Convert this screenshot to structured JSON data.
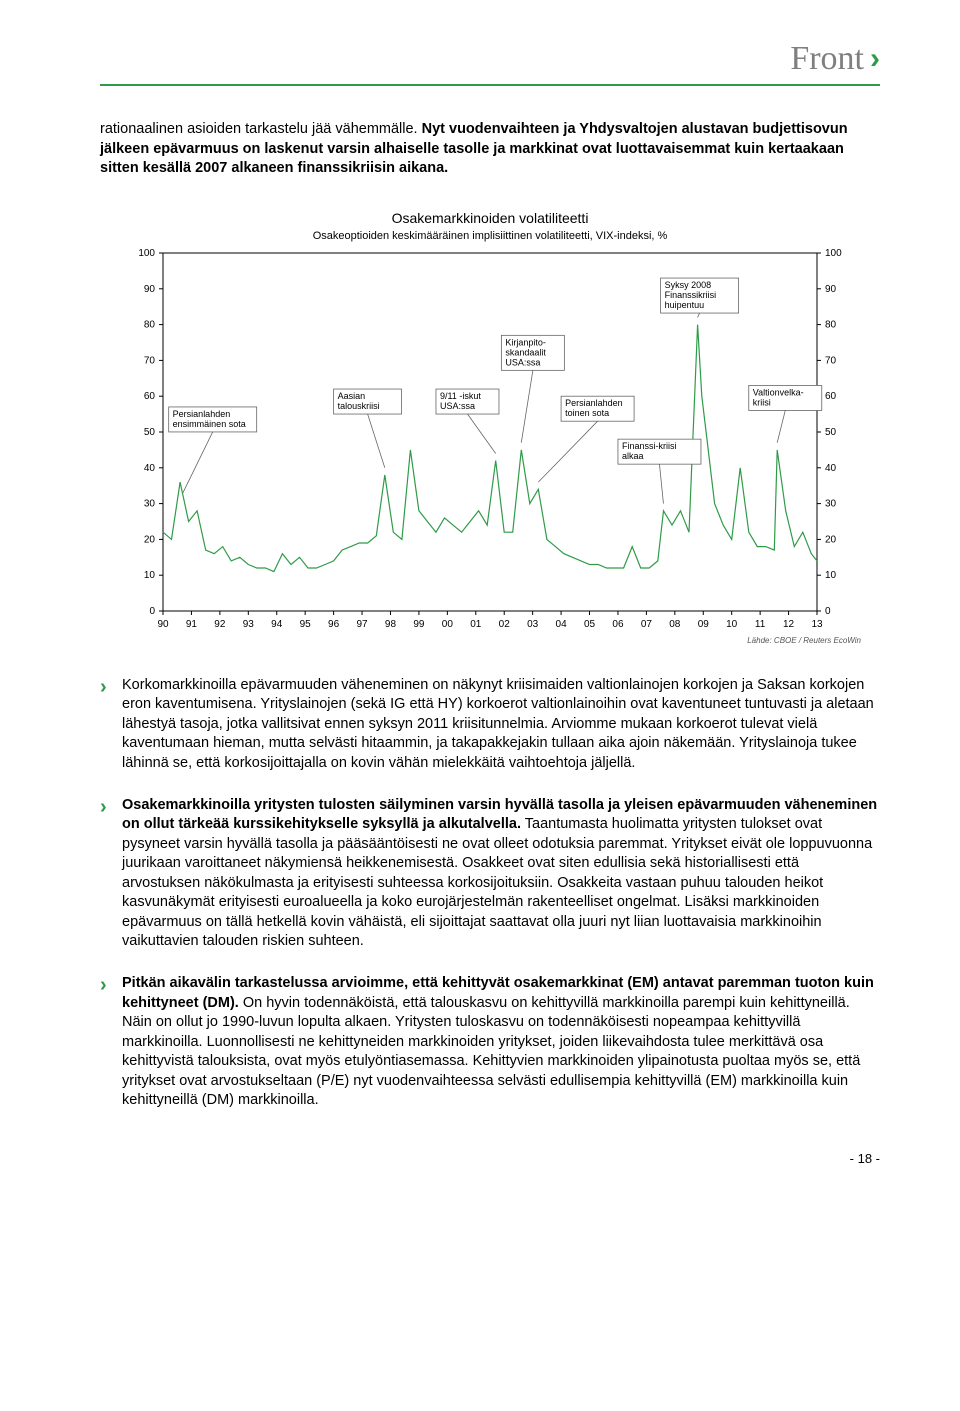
{
  "logo_text": "Front",
  "intro": {
    "lead": "rationaalinen asioiden tarkastelu jää vähemmälle. ",
    "bold": "Nyt vuodenvaihteen ja Yhdysvaltojen alustavan budjettisovun jälkeen epävarmuus on laskenut varsin alhaiselle tasolle ja markkinat ovat luottavaisemmat kuin kertaakaan sitten kesällä 2007 alkaneen finanssikriisin aikana."
  },
  "chart": {
    "type": "line",
    "title": "Osakemarkkinoiden volatiliteetti",
    "subtitle": "Osakeoptioiden keskimääräinen implisiittinen volatiliteetti, VIX-indeksi, %",
    "source": "Lähde: CBOE / Reuters EcoWin",
    "background_color": "#ffffff",
    "grid_color": "#b8b8b8",
    "line_color": "#2e9b47",
    "label_border_color": "#666666",
    "line_width": 1.2,
    "title_fontsize": 14,
    "subtitle_fontsize": 11,
    "tick_fontsize": 10,
    "label_fontsize": 9,
    "source_fontsize": 8,
    "ylim": [
      0,
      100
    ],
    "ytick_step": 10,
    "yticks": [
      0,
      10,
      20,
      30,
      40,
      50,
      60,
      70,
      80,
      90,
      100
    ],
    "xlim": [
      1990,
      2013
    ],
    "xticks": [
      "90",
      "91",
      "92",
      "93",
      "94",
      "95",
      "96",
      "97",
      "98",
      "99",
      "00",
      "01",
      "02",
      "03",
      "04",
      "05",
      "06",
      "07",
      "08",
      "09",
      "10",
      "11",
      "12",
      "13"
    ],
    "annotations": [
      {
        "text": "Persianlahden\nensimmäinen sota",
        "x": 1990.6
      },
      {
        "text": "Aasian\ntalouskriisi",
        "x": 1997.8
      },
      {
        "text": "9/11 -iskut\nUSA:ssa",
        "x": 2001.7
      },
      {
        "text": "Kirjanpito-\nskandaalit\nUSA:ssa",
        "x": 2002.6
      },
      {
        "text": "Persianlahden\ntoinen sota",
        "x": 2003.2
      },
      {
        "text": "Finanssi-kriisi\nalkaa",
        "x": 2007.6
      },
      {
        "text": "Syksy 2008\nFinanssikriisi\nhuipentuu",
        "x": 2008.8
      },
      {
        "text": "Valtionvelka-\nkriisi",
        "x": 2011.6
      }
    ],
    "series": [
      {
        "x": 1990.0,
        "y": 22
      },
      {
        "x": 1990.3,
        "y": 20
      },
      {
        "x": 1990.6,
        "y": 36
      },
      {
        "x": 1990.9,
        "y": 25
      },
      {
        "x": 1991.2,
        "y": 28
      },
      {
        "x": 1991.5,
        "y": 17
      },
      {
        "x": 1991.8,
        "y": 16
      },
      {
        "x": 1992.1,
        "y": 18
      },
      {
        "x": 1992.4,
        "y": 14
      },
      {
        "x": 1992.7,
        "y": 15
      },
      {
        "x": 1993.0,
        "y": 13
      },
      {
        "x": 1993.3,
        "y": 12
      },
      {
        "x": 1993.6,
        "y": 12
      },
      {
        "x": 1993.9,
        "y": 11
      },
      {
        "x": 1994.2,
        "y": 16
      },
      {
        "x": 1994.5,
        "y": 13
      },
      {
        "x": 1994.8,
        "y": 15
      },
      {
        "x": 1995.1,
        "y": 12
      },
      {
        "x": 1995.4,
        "y": 12
      },
      {
        "x": 1995.7,
        "y": 13
      },
      {
        "x": 1996.0,
        "y": 14
      },
      {
        "x": 1996.3,
        "y": 17
      },
      {
        "x": 1996.6,
        "y": 18
      },
      {
        "x": 1996.9,
        "y": 19
      },
      {
        "x": 1997.2,
        "y": 19
      },
      {
        "x": 1997.5,
        "y": 21
      },
      {
        "x": 1997.8,
        "y": 38
      },
      {
        "x": 1998.1,
        "y": 22
      },
      {
        "x": 1998.4,
        "y": 20
      },
      {
        "x": 1998.7,
        "y": 45
      },
      {
        "x": 1999.0,
        "y": 28
      },
      {
        "x": 1999.3,
        "y": 25
      },
      {
        "x": 1999.6,
        "y": 22
      },
      {
        "x": 1999.9,
        "y": 26
      },
      {
        "x": 2000.2,
        "y": 24
      },
      {
        "x": 2000.5,
        "y": 22
      },
      {
        "x": 2000.8,
        "y": 25
      },
      {
        "x": 2001.1,
        "y": 28
      },
      {
        "x": 2001.4,
        "y": 24
      },
      {
        "x": 2001.7,
        "y": 42
      },
      {
        "x": 2002.0,
        "y": 22
      },
      {
        "x": 2002.3,
        "y": 22
      },
      {
        "x": 2002.6,
        "y": 45
      },
      {
        "x": 2002.9,
        "y": 30
      },
      {
        "x": 2003.2,
        "y": 34
      },
      {
        "x": 2003.5,
        "y": 20
      },
      {
        "x": 2003.8,
        "y": 18
      },
      {
        "x": 2004.1,
        "y": 16
      },
      {
        "x": 2004.4,
        "y": 15
      },
      {
        "x": 2004.7,
        "y": 14
      },
      {
        "x": 2005.0,
        "y": 13
      },
      {
        "x": 2005.3,
        "y": 13
      },
      {
        "x": 2005.6,
        "y": 12
      },
      {
        "x": 2005.9,
        "y": 12
      },
      {
        "x": 2006.2,
        "y": 12
      },
      {
        "x": 2006.5,
        "y": 18
      },
      {
        "x": 2006.8,
        "y": 12
      },
      {
        "x": 2007.1,
        "y": 12
      },
      {
        "x": 2007.4,
        "y": 14
      },
      {
        "x": 2007.6,
        "y": 28
      },
      {
        "x": 2007.9,
        "y": 24
      },
      {
        "x": 2008.2,
        "y": 28
      },
      {
        "x": 2008.5,
        "y": 22
      },
      {
        "x": 2008.8,
        "y": 80
      },
      {
        "x": 2008.95,
        "y": 60
      },
      {
        "x": 2009.1,
        "y": 50
      },
      {
        "x": 2009.4,
        "y": 30
      },
      {
        "x": 2009.7,
        "y": 24
      },
      {
        "x": 2010.0,
        "y": 20
      },
      {
        "x": 2010.3,
        "y": 40
      },
      {
        "x": 2010.6,
        "y": 22
      },
      {
        "x": 2010.9,
        "y": 18
      },
      {
        "x": 2011.2,
        "y": 18
      },
      {
        "x": 2011.5,
        "y": 17
      },
      {
        "x": 2011.6,
        "y": 45
      },
      {
        "x": 2011.9,
        "y": 28
      },
      {
        "x": 2012.2,
        "y": 18
      },
      {
        "x": 2012.5,
        "y": 22
      },
      {
        "x": 2012.8,
        "y": 16
      },
      {
        "x": 2013.0,
        "y": 14
      }
    ]
  },
  "bullets": [
    {
      "runs": [
        {
          "b": false,
          "t": "Korkomarkkinoilla epävarmuuden väheneminen on näkynyt kriisimaiden valtionlainojen korkojen ja Saksan korkojen eron kaventumisena. Yrityslainojen (sekä IG että HY) korkoerot valtionlainoihin ovat kaventuneet tuntuvasti ja aletaan lähestyä tasoja, jotka vallitsivat ennen syksyn 2011 kriisitunnelmia. Arviomme mukaan korkoerot tulevat vielä kaventumaan hieman, mutta selvästi hitaammin, ja takapakkejakin tullaan aika ajoin näkemään. Yrityslainoja tukee lähinnä se, että korkosijoittajalla on kovin vähän mielekkäitä vaihtoehtoja jäljellä."
        }
      ]
    },
    {
      "runs": [
        {
          "b": true,
          "t": "Osakemarkkinoilla yritysten tulosten säilyminen varsin hyvällä tasolla ja yleisen epävarmuuden väheneminen on ollut tärkeää kurssikehitykselle syksyllä ja alkutalvella."
        },
        {
          "b": false,
          "t": " Taantumasta huolimatta yritysten tulokset ovat pysyneet varsin hyvällä tasolla ja pääsääntöisesti ne ovat olleet odotuksia paremmat. Yritykset eivät ole loppuvuonna juurikaan varoittaneet näkymiensä heikkenemisestä. Osakkeet ovat siten edullisia sekä historiallisesti että arvostuksen näkökulmasta ja erityisesti suhteessa korkosijoituksiin. Osakkeita vastaan puhuu talouden heikot kasvunäkymät erityisesti euroalueella ja koko eurojärjestelmän rakenteelliset ongelmat. Lisäksi markkinoiden epävarmuus on tällä hetkellä kovin vähäistä, eli sijoittajat saattavat olla juuri nyt liian luottavaisia markkinoihin vaikuttavien talouden riskien suhteen."
        }
      ]
    },
    {
      "runs": [
        {
          "b": true,
          "t": "Pitkän aikavälin tarkastelussa arvioimme, että kehittyvät osakemarkkinat (EM) antavat paremman tuoton kuin kehittyneet (DM)."
        },
        {
          "b": false,
          "t": " On hyvin todennäköistä, että talouskasvu on kehittyvillä markkinoilla parempi kuin kehittyneillä. Näin on ollut jo 1990-luvun lopulta alkaen. Yritysten tuloskasvu on todennäköisesti nopeampaa kehittyvillä markkinoilla. Luonnollisesti ne kehittyneiden markkinoiden yritykset, joiden liikevaihdosta tulee merkittävä osa kehittyvistä talouksista, ovat myös etulyöntiasemassa. Kehittyvien markkinoiden ylipainotusta puoltaa myös se, että yritykset ovat arvostukseltaan (P/E) nyt vuodenvaihteessa selvästi edullisempia kehittyvillä (EM) markkinoilla kuin kehittyneillä (DM) markkinoilla."
        }
      ]
    }
  ],
  "page_number": "- 18 -"
}
